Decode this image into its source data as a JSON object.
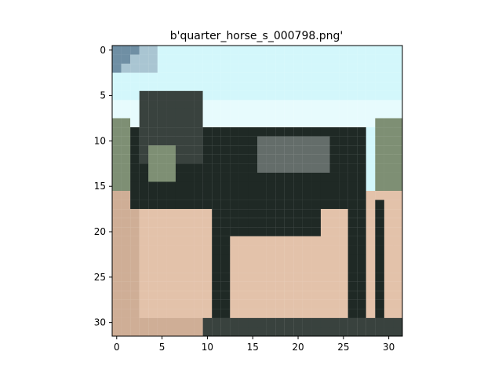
{
  "figure": {
    "title": "b'quarter_horse_s_000798.png'"
  },
  "image": {
    "description_hidden": true,
    "grid_size": [
      32,
      32
    ],
    "xlim": [
      -0.5,
      31.5
    ],
    "ylim": [
      31.5,
      -0.5
    ],
    "x_ticks": [
      "0",
      "5",
      "10",
      "15",
      "20",
      "25",
      "30"
    ],
    "y_ticks": [
      "0",
      "5",
      "10",
      "15",
      "20",
      "25",
      "30"
    ],
    "palette": {
      "sky": "#d3f7fb",
      "sky_light": "#e7fbfd",
      "sky_corner": "#6f8fa4",
      "horse_dark": "#1f2925",
      "horse_mid": "#39423e",
      "horse_grey": "#646d6a",
      "background_green": "#7e8f74",
      "ground": "#e3c2aa",
      "ground_shadow": "#cfae96"
    }
  }
}
